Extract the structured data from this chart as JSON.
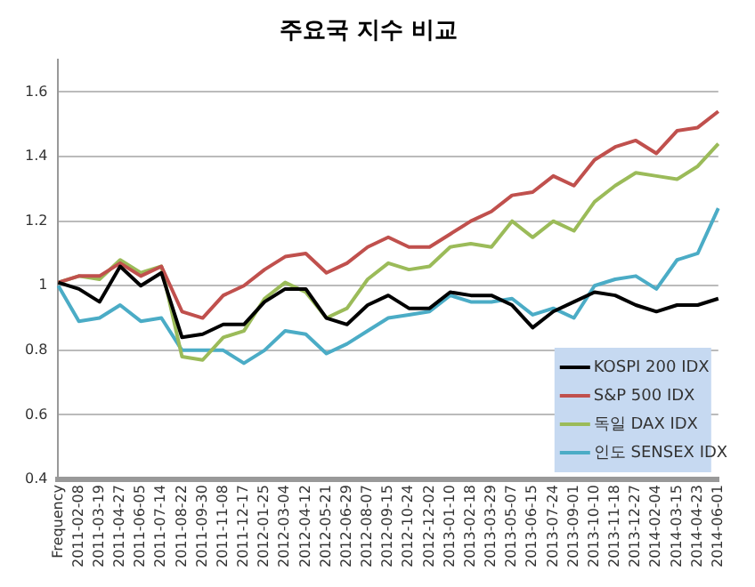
{
  "chart_data": {
    "type": "line",
    "title": "주요국 지수 비교",
    "categories": [
      "Frequency",
      "2011-02-08",
      "2011-03-19",
      "2011-04-27",
      "2011-06-05",
      "2011-07-14",
      "2011-08-22",
      "2011-09-30",
      "2011-11-08",
      "2011-12-17",
      "2012-01-25",
      "2012-03-04",
      "2012-04-12",
      "2012-05-21",
      "2012-06-29",
      "2012-08-07",
      "2012-09-15",
      "2012-10-24",
      "2012-12-02",
      "2013-01-10",
      "2013-02-18",
      "2013-03-29",
      "2013-05-07",
      "2013-06-15",
      "2013-07-24",
      "2013-09-01",
      "2013-10-10",
      "2013-11-18",
      "2013-12-27",
      "2014-02-04",
      "2014-03-15",
      "2014-04-23",
      "2014-06-01"
    ],
    "series": [
      {
        "name": "KOSPI 200 IDX",
        "color": "#000000",
        "values": [
          1.01,
          0.99,
          0.95,
          1.06,
          1.0,
          1.04,
          0.84,
          0.85,
          0.88,
          0.88,
          0.95,
          0.99,
          0.99,
          0.9,
          0.88,
          0.94,
          0.97,
          0.93,
          0.93,
          0.98,
          0.97,
          0.97,
          0.94,
          0.87,
          0.92,
          0.95,
          0.98,
          0.97,
          0.94,
          0.92,
          0.94,
          0.94,
          0.96
        ]
      },
      {
        "name": "S&P 500 IDX",
        "color": "#c0504d",
        "values": [
          1.01,
          1.03,
          1.03,
          1.07,
          1.03,
          1.06,
          0.92,
          0.9,
          0.97,
          1.0,
          1.05,
          1.09,
          1.1,
          1.04,
          1.07,
          1.12,
          1.15,
          1.12,
          1.12,
          1.16,
          1.2,
          1.23,
          1.28,
          1.29,
          1.34,
          1.31,
          1.39,
          1.43,
          1.45,
          1.41,
          1.48,
          1.49,
          1.54
        ]
      },
      {
        "name": "독일 DAX IDX",
        "color": "#9bbb59",
        "values": [
          1.01,
          1.03,
          1.02,
          1.08,
          1.04,
          1.06,
          0.78,
          0.77,
          0.84,
          0.86,
          0.96,
          1.01,
          0.98,
          0.9,
          0.93,
          1.02,
          1.07,
          1.05,
          1.06,
          1.12,
          1.13,
          1.12,
          1.2,
          1.15,
          1.2,
          1.17,
          1.26,
          1.31,
          1.35,
          1.34,
          1.33,
          1.37,
          1.44
        ]
      },
      {
        "name": "인도 SENSEX IDX",
        "color": "#4bacc6",
        "values": [
          1.0,
          0.89,
          0.9,
          0.94,
          0.89,
          0.9,
          0.8,
          0.8,
          0.8,
          0.76,
          0.8,
          0.86,
          0.85,
          0.79,
          0.82,
          0.86,
          0.9,
          0.91,
          0.92,
          0.97,
          0.95,
          0.95,
          0.96,
          0.91,
          0.93,
          0.9,
          1.0,
          1.02,
          1.03,
          0.99,
          1.08,
          1.1,
          1.24
        ]
      }
    ],
    "ylim": [
      0.4,
      1.7
    ],
    "yticks": [
      0.4,
      0.6,
      0.8,
      1,
      1.2,
      1.4,
      1.6
    ],
    "grid": "y",
    "legend": "bottom right",
    "marker": "none",
    "line_style": "solid"
  }
}
